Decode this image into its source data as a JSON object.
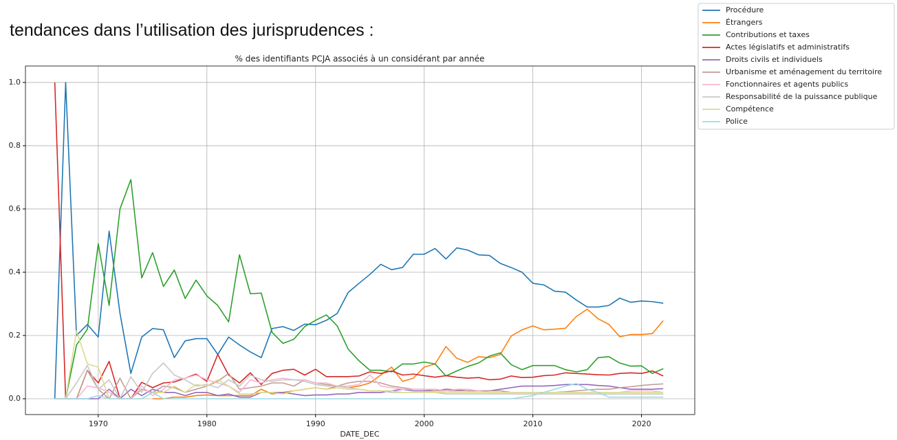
{
  "heading": "tendances dans l’utilisation des jurisprudences :",
  "chart_data": {
    "type": "line",
    "title": "% des identifiants PCJA associés à un considérant par année",
    "xlabel": "DATE_DEC",
    "x": [
      1966,
      1967,
      1968,
      1969,
      1970,
      1971,
      1972,
      1973,
      1974,
      1975,
      1976,
      1977,
      1978,
      1979,
      1980,
      1981,
      1982,
      1983,
      1984,
      1985,
      1986,
      1987,
      1988,
      1989,
      1990,
      1991,
      1992,
      1993,
      1994,
      1995,
      1996,
      1997,
      1998,
      1999,
      2000,
      2001,
      2002,
      2003,
      2004,
      2005,
      2006,
      2007,
      2008,
      2009,
      2010,
      2011,
      2012,
      2013,
      2014,
      2015,
      2016,
      2017,
      2018,
      2019,
      2020,
      2021,
      2022
    ],
    "xlim": [
      1963.3,
      2024.9
    ],
    "ylim": [
      -0.05,
      1.052
    ],
    "xticks": [
      1970,
      1980,
      1990,
      2000,
      2010,
      2020
    ],
    "yticks": [
      {
        "value": 0,
        "label": "0.0"
      },
      0.2,
      0.4,
      0.6,
      0.8,
      {
        "value": 1,
        "label": "1.0"
      }
    ],
    "grid": true,
    "legend": "outside upper right",
    "series": [
      {
        "name": "Procédure",
        "color": "#1f77b4",
        "values": [
          0,
          1.0,
          0.2,
          0.235,
          0.195,
          0.53,
          0.27,
          0.08,
          0.195,
          0.222,
          0.218,
          0.13,
          0.183,
          0.19,
          0.19,
          0.14,
          0.195,
          0.17,
          0.148,
          0.13,
          0.222,
          0.228,
          0.216,
          0.236,
          0.234,
          0.248,
          0.27,
          0.336,
          0.365,
          0.393,
          0.425,
          0.408,
          0.415,
          0.457,
          0.457,
          0.475,
          0.442,
          0.477,
          0.47,
          0.455,
          0.453,
          0.428,
          0.415,
          0.4,
          0.365,
          0.36,
          0.34,
          0.337,
          0.312,
          0.29,
          0.29,
          0.295,
          0.318,
          0.305,
          0.309,
          0.307,
          0.302
        ]
      },
      {
        "name": "Étrangers",
        "color": "#ff7f0e",
        "values": [
          null,
          null,
          null,
          null,
          null,
          null,
          null,
          null,
          null,
          0,
          0,
          0.005,
          0.005,
          0.01,
          0.012,
          0.01,
          0.01,
          0.01,
          0.01,
          0.03,
          0.015,
          0.02,
          0.025,
          0.03,
          0.035,
          0.03,
          0.04,
          0.035,
          0.04,
          0.05,
          0.075,
          0.1,
          0.055,
          0.065,
          0.1,
          0.11,
          0.165,
          0.128,
          0.115,
          0.133,
          0.13,
          0.14,
          0.198,
          0.218,
          0.23,
          0.218,
          0.22,
          0.223,
          0.26,
          0.283,
          0.253,
          0.235,
          0.196,
          0.203,
          0.203,
          0.206,
          0.247
        ]
      },
      {
        "name": "Contributions et taxes",
        "color": "#2ca02c",
        "values": [
          0,
          0,
          0.17,
          0.22,
          0.49,
          0.295,
          0.6,
          0.693,
          0.382,
          0.462,
          0.355,
          0.407,
          0.317,
          0.375,
          0.325,
          0.295,
          0.243,
          0.455,
          0.332,
          0.334,
          0.21,
          0.175,
          0.188,
          0.228,
          0.248,
          0.265,
          0.23,
          0.157,
          0.12,
          0.09,
          0.09,
          0.085,
          0.11,
          0.11,
          0.116,
          0.11,
          0.072,
          0.088,
          0.102,
          0.113,
          0.135,
          0.145,
          0.108,
          0.092,
          0.105,
          0.105,
          0.105,
          0.092,
          0.085,
          0.092,
          0.13,
          0.133,
          0.113,
          0.103,
          0.104,
          0.08,
          0.095
        ]
      },
      {
        "name": "Actes législatifs et administratifs",
        "color": "#d62728",
        "values": [
          1.0,
          0,
          0,
          0.09,
          0.05,
          0.118,
          0,
          0,
          0.052,
          0.035,
          0.05,
          0.053,
          0.065,
          0.078,
          0.055,
          0.14,
          0.075,
          0.05,
          0.082,
          0.045,
          0.08,
          0.09,
          0.093,
          0.075,
          0.093,
          0.07,
          0.07,
          0.07,
          0.072,
          0.085,
          0.08,
          0.088,
          0.075,
          0.078,
          0.073,
          0.068,
          0.073,
          0.068,
          0.065,
          0.067,
          0.06,
          0.062,
          0.072,
          0.067,
          0.068,
          0.073,
          0.075,
          0.082,
          0.08,
          0.078,
          0.076,
          0.075,
          0.08,
          0.082,
          0.08,
          0.088,
          0.072
        ]
      },
      {
        "name": "Droits civils et individuels",
        "color": "#9467bd",
        "values": [
          0,
          0,
          0,
          0,
          0,
          0.03,
          0,
          0.03,
          0.01,
          0.03,
          0.02,
          0.02,
          0.01,
          0.02,
          0.02,
          0.01,
          0.015,
          0.005,
          0.005,
          0.02,
          0.02,
          0.02,
          0.015,
          0.01,
          0.012,
          0.012,
          0.015,
          0.015,
          0.02,
          0.02,
          0.02,
          0.025,
          0.03,
          0.025,
          0.025,
          0.025,
          0.03,
          0.028,
          0.025,
          0.025,
          0.025,
          0.03,
          0.035,
          0.04,
          0.04,
          0.04,
          0.042,
          0.045,
          0.045,
          0.045,
          0.042,
          0.04,
          0.035,
          0.03,
          0.03,
          0.03,
          0.032
        ]
      },
      {
        "name": "Urbanisme et aménagement du territoire",
        "color": "#c49c94",
        "values": [
          0,
          0,
          0,
          0.09,
          0.03,
          0,
          0.065,
          0,
          0.03,
          0.02,
          0.04,
          0.035,
          0.02,
          0.03,
          0.04,
          0.055,
          0.08,
          0.03,
          0.035,
          0.04,
          0.05,
          0.05,
          0.04,
          0.06,
          0.05,
          0.045,
          0.04,
          0.05,
          0.055,
          0.055,
          0.05,
          0.04,
          0.035,
          0.03,
          0.03,
          0.025,
          0.025,
          0.025,
          0.025,
          0.025,
          0.025,
          0.025,
          0.02,
          0.02,
          0.02,
          0.02,
          0.02,
          0.022,
          0.025,
          0.028,
          0.03,
          0.03,
          0.035,
          0.038,
          0.042,
          0.045,
          0.047
        ]
      },
      {
        "name": "Fonctionnaires et agents publics",
        "color": "#f7b6d2",
        "values": [
          0,
          0,
          0,
          0.04,
          0.035,
          0.02,
          0,
          0,
          0.04,
          0.01,
          0.03,
          0.06,
          0.065,
          0.075,
          0.06,
          0.05,
          0.04,
          0.02,
          0.06,
          0.05,
          0.06,
          0.065,
          0.06,
          0.06,
          0.05,
          0.05,
          0.04,
          0.04,
          0.045,
          0.075,
          0.04,
          0.035,
          0.03,
          0.03,
          0.03,
          0.03,
          0.025,
          0.03,
          0.03,
          0.025,
          0.02,
          0.02,
          0.02,
          0.02,
          0.02,
          0.02,
          0.02,
          0.02,
          0.02,
          0.02,
          0.02,
          0.02,
          0.02,
          0.025,
          0.025,
          0.025,
          0.02
        ]
      },
      {
        "name": "Responsabilité de la puissance publique",
        "color": "#c7c7c7",
        "values": [
          0,
          0,
          0.05,
          0.105,
          0.03,
          0.06,
          0,
          0.07,
          0.02,
          0.08,
          0.113,
          0.075,
          0.06,
          0.04,
          0.045,
          0.035,
          0.06,
          0.04,
          0.075,
          0.06,
          0.055,
          0.06,
          0.06,
          0.055,
          0.045,
          0.04,
          0.04,
          0.035,
          0.03,
          0.025,
          0.025,
          0.02,
          0.02,
          0.02,
          0.02,
          0.02,
          0.015,
          0.015,
          0.015,
          0.015,
          0.015,
          0.015,
          0.015,
          0.015,
          0.015,
          0.015,
          0.015,
          0.015,
          0.015,
          0.015,
          0.015,
          0.015,
          0.015,
          0.015,
          0.015,
          0.015,
          0.015
        ]
      },
      {
        "name": "Compétence",
        "color": "#dbdb8d",
        "values": [
          0,
          0,
          0.215,
          0.11,
          0.1,
          0,
          0,
          0,
          0,
          0.02,
          0.02,
          0.04,
          0.02,
          0.045,
          0.04,
          0.06,
          0.04,
          0.015,
          0.015,
          0.02,
          0.02,
          0.015,
          0.025,
          0.03,
          0.035,
          0.03,
          0.035,
          0.03,
          0.03,
          0.025,
          0.025,
          0.025,
          0.02,
          0.02,
          0.02,
          0.02,
          0.02,
          0.02,
          0.02,
          0.02,
          0.02,
          0.02,
          0.02,
          0.02,
          0.02,
          0.02,
          0.02,
          0.02,
          0.02,
          0.02,
          0.02,
          0.02,
          0.02,
          0.02,
          0.02,
          0.02,
          0.02
        ]
      },
      {
        "name": "Police",
        "color": "#9edae5",
        "values": [
          0,
          0,
          0,
          0,
          0.01,
          0,
          0,
          0,
          0,
          0.02,
          0,
          0,
          0,
          0,
          0,
          0,
          0,
          0,
          0,
          0,
          0,
          0,
          0,
          0,
          0,
          0,
          0,
          0,
          0,
          0,
          0,
          0,
          0,
          0,
          0,
          0,
          0,
          0,
          0,
          0,
          0,
          0,
          0,
          0.005,
          0.01,
          0.02,
          0.03,
          0.04,
          0.048,
          0.03,
          0.02,
          0.005,
          0.005,
          0.005,
          0.005,
          0.005,
          0.005
        ]
      }
    ]
  }
}
